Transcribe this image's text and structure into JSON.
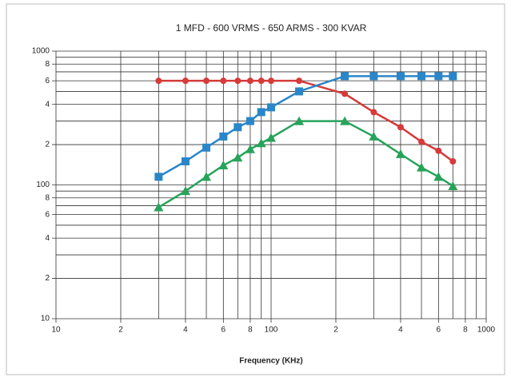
{
  "chart_data": {
    "type": "line",
    "title": "1 MFD - 600 VRMS - 650 ARMS - 300 KVAR",
    "x_label": "Frequency (KHz)",
    "x": [
      30,
      40,
      50,
      60,
      70,
      80,
      90,
      100,
      135,
      220,
      300,
      400,
      500,
      600,
      700
    ],
    "series": [
      {
        "color": "#d63a3a",
        "marker": "circle",
        "values": [
          600,
          600,
          600,
          600,
          600,
          600,
          600,
          600,
          600,
          480,
          350,
          270,
          210,
          180,
          150
        ]
      },
      {
        "color": "#2a86c8",
        "marker": "square",
        "values": [
          115,
          150,
          190,
          230,
          270,
          300,
          350,
          380,
          500,
          650,
          650,
          650,
          650,
          650,
          650
        ]
      },
      {
        "color": "#27a35a",
        "marker": "triangle",
        "values": [
          68,
          90,
          115,
          140,
          160,
          185,
          205,
          225,
          300,
          300,
          230,
          170,
          135,
          115,
          98
        ]
      }
    ],
    "x_log": true,
    "y_log": true,
    "grid": true,
    "xlim": [
      10,
      1000
    ],
    "xticks": [
      10,
      {
        "value": 20,
        "label": "2"
      },
      {
        "value": 40,
        "label": "4"
      },
      {
        "value": 60,
        "label": "6"
      },
      {
        "value": 80,
        "label": "8"
      },
      100,
      {
        "value": 200,
        "label": "2"
      },
      {
        "value": 400,
        "label": "4"
      },
      {
        "value": 600,
        "label": "6"
      },
      {
        "value": 800,
        "label": "8"
      },
      1000
    ],
    "x_minor_ticks": [
      30,
      50,
      70,
      90,
      300,
      500,
      700,
      900
    ],
    "ylim": [
      10,
      1000
    ],
    "yticks": [
      10,
      {
        "value": 20,
        "label": "2"
      },
      {
        "value": 40,
        "label": "4"
      },
      {
        "value": 60,
        "label": "6"
      },
      {
        "value": 80,
        "label": "8"
      },
      100,
      {
        "value": 200,
        "label": "2"
      },
      {
        "value": 400,
        "label": "4"
      },
      {
        "value": 600,
        "label": "6"
      },
      {
        "value": 800,
        "label": "8"
      },
      1000
    ],
    "y_minor_ticks": [
      30,
      50,
      70,
      90,
      300,
      500,
      700,
      900
    ]
  }
}
